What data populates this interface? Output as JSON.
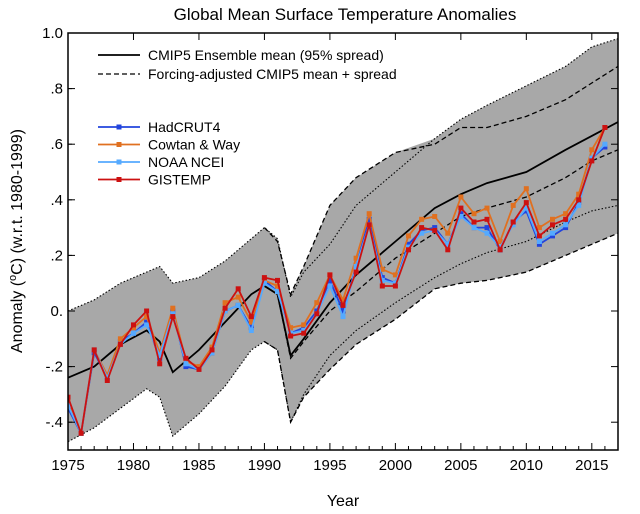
{
  "chart_data": {
    "type": "line",
    "title": "Global Mean Surface Temperature Anomalies",
    "xlabel": "Year",
    "ylabel_prefix": "Anomaly (",
    "ylabel_super": "o",
    "ylabel_suffix": "C) (w.r.t. 1980-1999)",
    "xlim": [
      1975,
      2017
    ],
    "ylim": [
      -0.5,
      1.0
    ],
    "xticks": [
      1975,
      1980,
      1985,
      1990,
      1995,
      2000,
      2005,
      2010,
      2015
    ],
    "xtick_labels": [
      "1975",
      "1980",
      "1985",
      "1990",
      "1995",
      "2000",
      "2005",
      "2010",
      "2015"
    ],
    "yticks": [
      1.0,
      0.8,
      0.6,
      0.4,
      0.2,
      0.0,
      -0.2,
      -0.4
    ],
    "ytick_labels": [
      "1.0",
      ".8",
      ".6",
      ".4",
      ".2",
      "0.",
      "-.2",
      "-.4"
    ],
    "legend_top": [
      {
        "label": "CMIP5 Ensemble mean (95% spread)",
        "style": "solid"
      },
      {
        "label": "Forcing-adjusted CMIP5 mean + spread",
        "style": "dashed"
      }
    ],
    "legend_obs": [
      {
        "label": "HadCRUT4",
        "color": "#2244dd"
      },
      {
        "label": "Cowtan & Way",
        "color": "#e07020"
      },
      {
        "label": "NOAA NCEI",
        "color": "#55aaff"
      },
      {
        "label": "GISTEMP",
        "color": "#cc1111"
      }
    ],
    "band_color": "#a8a8a8",
    "ensemble": {
      "x": [
        1975,
        1977,
        1979,
        1981,
        1982,
        1983,
        1985,
        1987,
        1989,
        1990,
        1991,
        1992,
        1993,
        1995,
        1997,
        2000,
        2003,
        2005,
        2007,
        2010,
        2013,
        2015,
        2017
      ],
      "mean": [
        -0.24,
        -0.2,
        -0.12,
        -0.07,
        -0.11,
        -0.22,
        -0.14,
        -0.04,
        0.06,
        0.09,
        0.06,
        -0.16,
        -0.1,
        0.03,
        0.13,
        0.25,
        0.37,
        0.42,
        0.46,
        0.5,
        0.58,
        0.63,
        0.68
      ],
      "upper": [
        0.0,
        0.04,
        0.1,
        0.14,
        0.16,
        0.1,
        0.12,
        0.18,
        0.26,
        0.3,
        0.26,
        0.05,
        0.14,
        0.24,
        0.38,
        0.5,
        0.62,
        0.69,
        0.74,
        0.81,
        0.88,
        0.95,
        0.98
      ],
      "lower": [
        -0.47,
        -0.42,
        -0.35,
        -0.28,
        -0.31,
        -0.45,
        -0.37,
        -0.27,
        -0.14,
        -0.11,
        -0.14,
        -0.4,
        -0.3,
        -0.16,
        -0.07,
        0.03,
        0.12,
        0.17,
        0.21,
        0.25,
        0.32,
        0.36,
        0.38
      ]
    },
    "forcing_adjusted": {
      "x": [
        1990,
        1991,
        1992,
        1993,
        1995,
        1997,
        2000,
        2003,
        2005,
        2007,
        2010,
        2013,
        2015,
        2017
      ],
      "mean": [
        0.09,
        0.06,
        -0.17,
        -0.11,
        0.0,
        0.07,
        0.19,
        0.28,
        0.34,
        0.37,
        0.41,
        0.48,
        0.54,
        0.58
      ],
      "upper": [
        0.3,
        0.25,
        0.06,
        0.16,
        0.38,
        0.48,
        0.57,
        0.6,
        0.66,
        0.66,
        0.7,
        0.76,
        0.82,
        0.88
      ],
      "lower": [
        -0.11,
        -0.14,
        -0.4,
        -0.31,
        -0.21,
        -0.12,
        -0.03,
        0.08,
        0.1,
        0.11,
        0.14,
        0.2,
        0.24,
        0.28
      ]
    },
    "years": [
      1975,
      1976,
      1977,
      1978,
      1979,
      1980,
      1981,
      1982,
      1983,
      1984,
      1985,
      1986,
      1987,
      1988,
      1989,
      1990,
      1991,
      1992,
      1993,
      1994,
      1995,
      1996,
      1997,
      1998,
      1999,
      2000,
      2001,
      2002,
      2003,
      2004,
      2005,
      2006,
      2007,
      2008,
      2009,
      2010,
      2011,
      2012,
      2013,
      2014,
      2015,
      2016
    ],
    "series": [
      {
        "name": "HadCRUT4",
        "color": "#2244dd",
        "values": [
          -0.35,
          -0.44,
          -0.15,
          -0.24,
          -0.11,
          -0.08,
          -0.04,
          -0.17,
          0.0,
          -0.2,
          -0.21,
          -0.15,
          0.0,
          0.02,
          -0.06,
          0.11,
          0.07,
          -0.08,
          -0.06,
          0.0,
          0.11,
          0.0,
          0.16,
          0.33,
          0.12,
          0.1,
          0.24,
          0.29,
          0.3,
          0.24,
          0.35,
          0.3,
          0.3,
          0.22,
          0.32,
          0.36,
          0.24,
          0.27,
          0.3,
          0.39,
          0.55,
          0.59
        ]
      },
      {
        "name": "Cowtan & Way",
        "color": "#e07020",
        "values": [
          -0.32,
          -0.44,
          -0.14,
          -0.23,
          -0.1,
          -0.06,
          -0.02,
          -0.15,
          0.01,
          -0.18,
          -0.2,
          -0.13,
          0.03,
          0.05,
          -0.04,
          0.11,
          0.09,
          -0.06,
          -0.05,
          0.03,
          0.13,
          0.04,
          0.19,
          0.35,
          0.15,
          0.13,
          0.27,
          0.33,
          0.34,
          0.28,
          0.41,
          0.35,
          0.37,
          0.25,
          0.38,
          0.44,
          0.3,
          0.33,
          0.35,
          0.42,
          0.58,
          0.66
        ]
      },
      {
        "name": "NOAA NCEI",
        "color": "#55aaff",
        "values": [
          -0.34,
          -0.44,
          -0.14,
          -0.24,
          -0.12,
          -0.08,
          -0.05,
          -0.16,
          -0.01,
          -0.19,
          -0.21,
          -0.15,
          0.0,
          0.02,
          -0.07,
          0.1,
          0.07,
          -0.08,
          -0.07,
          -0.01,
          0.09,
          -0.02,
          0.16,
          0.31,
          0.11,
          0.1,
          0.23,
          0.28,
          0.29,
          0.24,
          0.34,
          0.3,
          0.28,
          0.23,
          0.31,
          0.37,
          0.25,
          0.28,
          0.31,
          0.38,
          0.55,
          0.6
        ]
      },
      {
        "name": "GISTEMP",
        "color": "#cc1111",
        "values": [
          -0.31,
          -0.44,
          -0.14,
          -0.25,
          -0.12,
          -0.05,
          0.0,
          -0.19,
          -0.02,
          -0.17,
          -0.21,
          -0.14,
          0.01,
          0.08,
          -0.02,
          0.12,
          0.11,
          -0.09,
          -0.08,
          -0.01,
          0.13,
          0.02,
          0.14,
          0.31,
          0.09,
          0.09,
          0.22,
          0.3,
          0.29,
          0.22,
          0.37,
          0.32,
          0.33,
          0.22,
          0.32,
          0.39,
          0.27,
          0.31,
          0.33,
          0.4,
          0.54,
          0.66
        ]
      }
    ]
  }
}
